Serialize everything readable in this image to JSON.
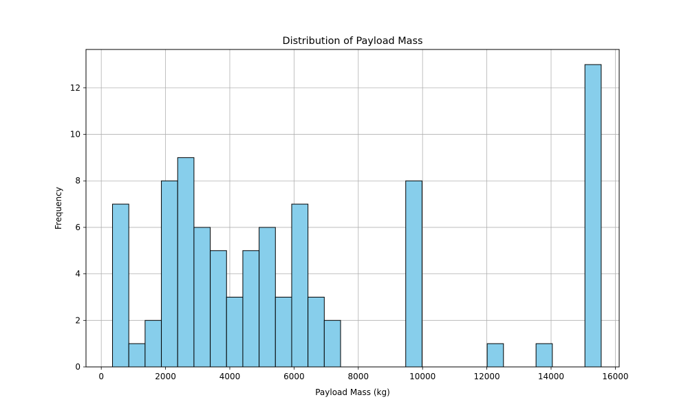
{
  "chart_data": {
    "type": "bar",
    "title": "Distribution of Payload Mass",
    "xlabel": "Payload Mass (kg)",
    "ylabel": "Frequency",
    "xlim": [
      -475,
      16120
    ],
    "ylim": [
      0,
      13.65
    ],
    "x_ticks": [
      0,
      2000,
      4000,
      6000,
      8000,
      10000,
      12000,
      14000,
      16000
    ],
    "x_tick_labels": [
      "0",
      "2000",
      "4000",
      "6000",
      "8000",
      "10000",
      "12000",
      "14000",
      "16000"
    ],
    "y_ticks": [
      0,
      2,
      4,
      6,
      8,
      10,
      12
    ],
    "y_tick_labels": [
      "0",
      "2",
      "4",
      "6",
      "8",
      "10",
      "12"
    ],
    "bin_start": 350,
    "bin_width": 507,
    "counts": [
      7,
      1,
      2,
      8,
      9,
      6,
      5,
      3,
      5,
      6,
      3,
      7,
      3,
      2,
      0,
      0,
      0,
      0,
      8,
      0,
      0,
      0,
      0,
      1,
      0,
      0,
      1,
      0,
      0,
      13
    ],
    "grid": true,
    "bar_color": "#87CEEB",
    "edge_color": "#000000",
    "grid_color": "#b0b0b0"
  }
}
